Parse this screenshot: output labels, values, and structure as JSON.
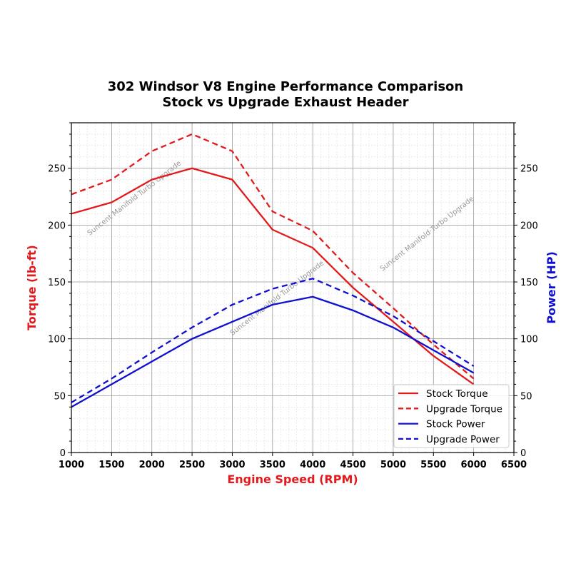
{
  "chart_data": {
    "type": "line",
    "title": "302 Windsor V8 Engine Performance Comparison",
    "subtitle": "Stock vs Upgrade Exhaust Header",
    "xlabel": "Engine Speed (RPM)",
    "ylabel": "Torque (lb-ft)",
    "y2label": "Power (HP)",
    "xlim": [
      1000,
      6500
    ],
    "ylim": [
      0,
      290
    ],
    "y2lim": [
      0,
      290
    ],
    "xticks": [
      1000,
      1500,
      2000,
      2500,
      3000,
      3500,
      4000,
      4500,
      5000,
      5500,
      6000,
      6500
    ],
    "yticks": [
      0,
      50,
      100,
      150,
      200,
      250
    ],
    "grid": true,
    "legend_position": "bottom-right",
    "x": [
      1000,
      1500,
      2000,
      2500,
      3000,
      3500,
      4000,
      4500,
      5000,
      5500,
      6000
    ],
    "series": [
      {
        "name": "Stock Torque",
        "axis": "left",
        "color": "#e31a1c",
        "dash": false,
        "values": [
          210,
          220,
          240,
          250,
          240,
          196,
          180,
          145,
          115,
          85,
          60
        ]
      },
      {
        "name": "Upgrade Torque",
        "axis": "left",
        "color": "#e31a1c",
        "dash": true,
        "values": [
          227,
          240,
          265,
          280,
          265,
          212,
          195,
          158,
          127,
          95,
          65
        ]
      },
      {
        "name": "Stock Power",
        "axis": "right",
        "color": "#1010d0",
        "dash": false,
        "values": [
          40,
          60,
          80,
          100,
          115,
          130,
          137,
          125,
          110,
          90,
          70
        ]
      },
      {
        "name": "Upgrade Power",
        "axis": "right",
        "color": "#1010d0",
        "dash": true,
        "values": [
          44,
          65,
          88,
          110,
          130,
          144,
          153,
          138,
          120,
          98,
          76
        ]
      }
    ],
    "colors": {
      "torque_axis": "#e31a1c",
      "power_axis": "#1010d0"
    },
    "watermark": "Suncent Manifold·Turbo Upgrade"
  }
}
